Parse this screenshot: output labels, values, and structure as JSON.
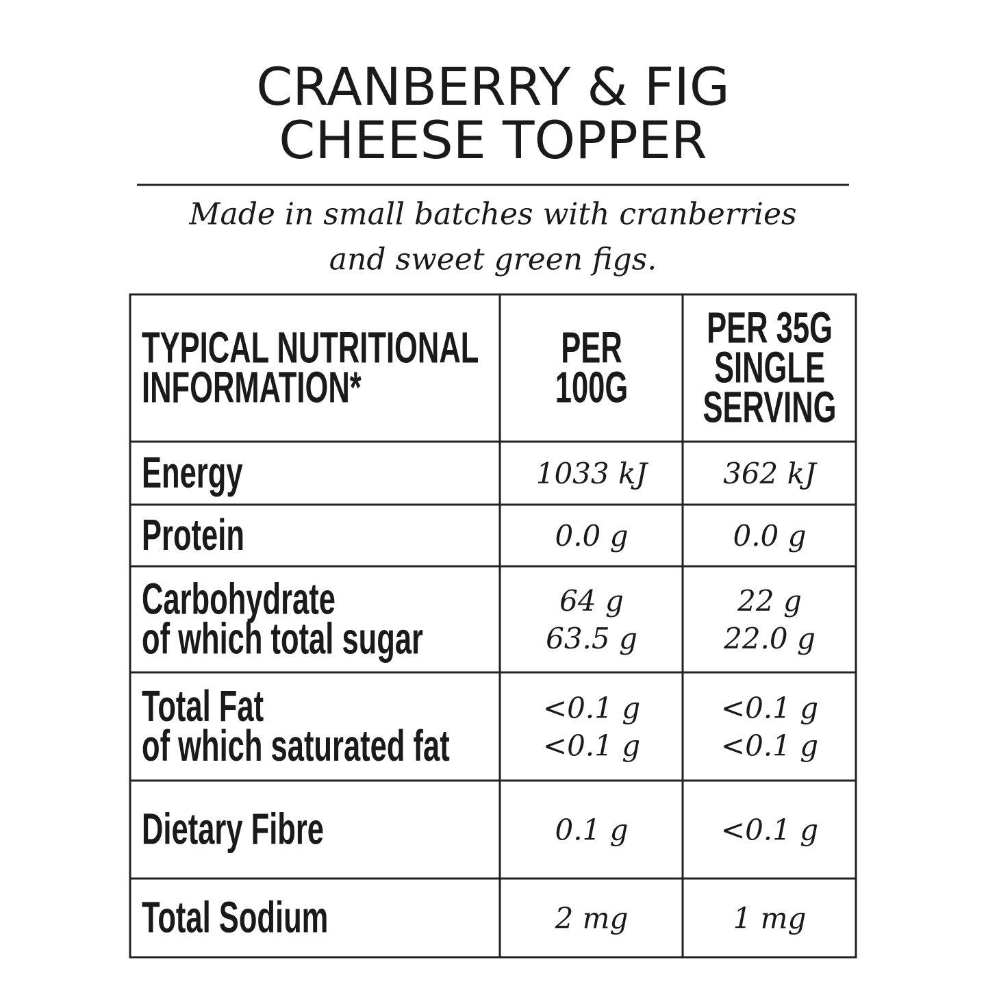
{
  "title": [
    "CRANBERRY & FIG",
    "CHEESE TOPPER"
  ],
  "subtitle": [
    "Made in small batches with cranberries",
    "and sweet green figs."
  ],
  "table": {
    "header": [
      [
        "TYPICAL NUTRITIONAL",
        "INFORMATION*"
      ],
      [
        "PER",
        "100G"
      ],
      [
        "PER 35G",
        "SINGLE",
        "SERVING"
      ]
    ],
    "rows": [
      [
        [
          "Energy"
        ],
        [
          "1033 kJ"
        ],
        [
          "362 kJ"
        ]
      ],
      [
        [
          "Protein"
        ],
        [
          "0.0 g"
        ],
        [
          "0.0 g"
        ]
      ],
      [
        [
          "Carbohydrate",
          "of which total sugar"
        ],
        [
          "64 g",
          "63.5 g"
        ],
        [
          "22 g",
          "22.0 g"
        ]
      ],
      [
        [
          "Total Fat",
          "of which saturated fat"
        ],
        [
          "<0.1 g",
          "<0.1 g"
        ],
        [
          "<0.1 g",
          "<0.1 g"
        ]
      ],
      [
        [
          "Dietary Fibre"
        ],
        [
          "0.1 g"
        ],
        [
          "<0.1 g"
        ]
      ],
      [
        [
          "Total Sodium"
        ],
        [
          "2 mg"
        ],
        [
          "1 mg"
        ]
      ]
    ]
  }
}
